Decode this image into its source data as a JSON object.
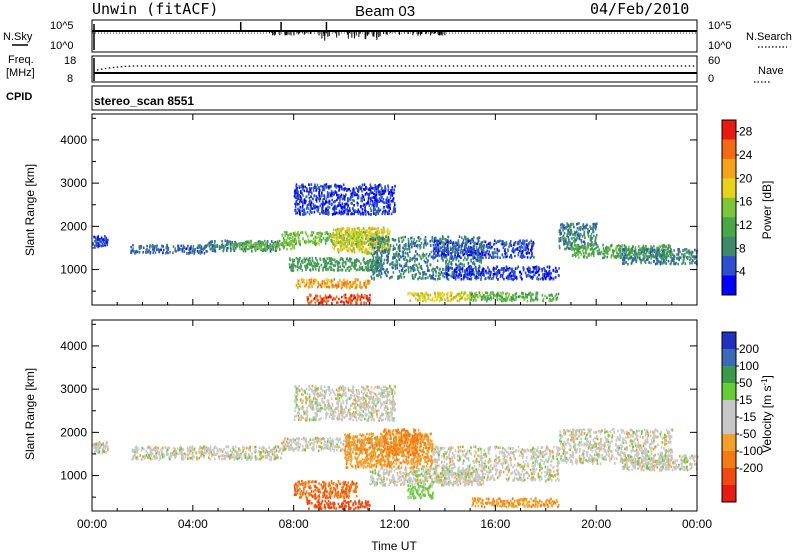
{
  "header": {
    "station": "Unwin (fitACF)",
    "beam": "Beam 03",
    "date": "04/Feb/2010"
  },
  "side_labels": {
    "nsky": "N.Sky",
    "nsky_hi": "10^5",
    "nsky_lo": "10^0",
    "nsearch": "N.Search",
    "nsearch_hi": "10^5",
    "nsearch_lo": "10^0",
    "freq": "Freq.",
    "freq_unit": "[MHz]",
    "freq_hi": "18",
    "freq_lo": "8",
    "nave": "Nave",
    "nave_hi": "60",
    "nave_lo": "0",
    "cpid": "CPID",
    "cpid_value": "stereo_scan 8551"
  },
  "colors": {
    "power_scale": [
      "#0000ff",
      "#2b4fd0",
      "#3c8a6a",
      "#48a848",
      "#7cc63a",
      "#e8d21a",
      "#f4a21c",
      "#f46a14",
      "#e81a12"
    ],
    "velocity_scale": [
      "#e81a12",
      "#f04a10",
      "#f47a14",
      "#f4a028",
      "#c8c8c8",
      "#c8c8c8",
      "#66cc33",
      "#3a9a4a",
      "#3a6ab8",
      "#2030c0"
    ]
  },
  "chart_data": [
    {
      "type": "heatmap",
      "title": "",
      "xlabel": "",
      "ylabel": "Slant Range [km]",
      "xticks": [
        "00:00",
        "04:00",
        "08:00",
        "12:00",
        "16:00",
        "20:00",
        "00:00"
      ],
      "yticks": [
        "1000",
        "2000",
        "3000",
        "4000"
      ],
      "xlim_hours": [
        0,
        24
      ],
      "ylim_km": [
        180,
        4600
      ],
      "colorbar": {
        "label": "Power [dB]",
        "ticks": [
          "4",
          "8",
          "12",
          "16",
          "20",
          "24",
          "28"
        ],
        "range": [
          0,
          30
        ]
      },
      "echo_bands": [
        {
          "t0": 0.0,
          "t1": 0.6,
          "r0": 1550,
          "r1": 1800,
          "db": 4
        },
        {
          "t0": 1.5,
          "t1": 4.5,
          "r0": 1400,
          "r1": 1600,
          "db": 6
        },
        {
          "t0": 4.5,
          "t1": 7.5,
          "r0": 1450,
          "r1": 1700,
          "db": 8
        },
        {
          "t0": 5.5,
          "t1": 8.0,
          "r0": 1500,
          "r1": 1650,
          "db": 14
        },
        {
          "t0": 7.5,
          "t1": 11.5,
          "r0": 1600,
          "r1": 1900,
          "db": 14
        },
        {
          "t0": 9.5,
          "t1": 11.8,
          "r0": 1400,
          "r1": 2000,
          "db": 18
        },
        {
          "t0": 8.0,
          "t1": 11.0,
          "r0": 600,
          "r1": 800,
          "db": 22
        },
        {
          "t0": 8.5,
          "t1": 11.0,
          "r0": 250,
          "r1": 450,
          "db": 26
        },
        {
          "t0": 7.8,
          "t1": 11.5,
          "r0": 1000,
          "r1": 1300,
          "db": 10
        },
        {
          "t0": 11.0,
          "t1": 15.5,
          "r0": 800,
          "r1": 1800,
          "db": 8
        },
        {
          "t0": 12.5,
          "t1": 15.5,
          "r0": 300,
          "r1": 500,
          "db": 18
        },
        {
          "t0": 13.5,
          "t1": 17.5,
          "r0": 1300,
          "r1": 1700,
          "db": 5
        },
        {
          "t0": 14.0,
          "t1": 18.5,
          "r0": 800,
          "r1": 1100,
          "db": 4
        },
        {
          "t0": 15.0,
          "t1": 18.5,
          "r0": 300,
          "r1": 500,
          "db": 12
        },
        {
          "t0": 18.5,
          "t1": 20.0,
          "r0": 1500,
          "r1": 2100,
          "db": 8
        },
        {
          "t0": 19.0,
          "t1": 23.0,
          "r0": 1300,
          "r1": 1600,
          "db": 12
        },
        {
          "t0": 21.0,
          "t1": 24.0,
          "r0": 1150,
          "r1": 1500,
          "db": 8
        },
        {
          "t0": 8.0,
          "t1": 12.0,
          "r0": 2300,
          "r1": 3000,
          "db": 4
        }
      ]
    },
    {
      "type": "heatmap",
      "title": "",
      "xlabel": "Time UT",
      "ylabel": "Slant Range [km]",
      "xticks": [
        "00:00",
        "04:00",
        "08:00",
        "12:00",
        "16:00",
        "20:00",
        "00:00"
      ],
      "yticks": [
        "1000",
        "2000",
        "3000",
        "4000"
      ],
      "xlim_hours": [
        0,
        24
      ],
      "ylim_km": [
        180,
        4600
      ],
      "colorbar": {
        "label": "Velocity [m s^-1]",
        "ticks": [
          "-200",
          "-100",
          "-50",
          "-15",
          "15",
          "50",
          "100",
          "200"
        ],
        "range": [
          -250,
          250
        ]
      },
      "echo_bands": [
        {
          "t0": 0.0,
          "t1": 0.6,
          "r0": 1550,
          "r1": 1800,
          "v": 0
        },
        {
          "t0": 1.5,
          "t1": 7.5,
          "r0": 1400,
          "r1": 1700,
          "v": 0
        },
        {
          "t0": 7.5,
          "t1": 11.5,
          "r0": 1600,
          "r1": 1900,
          "v": 0
        },
        {
          "t0": 10.0,
          "t1": 13.5,
          "r0": 1200,
          "r1": 2000,
          "v": -40
        },
        {
          "t0": 11.5,
          "t1": 13.0,
          "r0": 1500,
          "r1": 2100,
          "v": -60
        },
        {
          "t0": 8.0,
          "t1": 10.5,
          "r0": 500,
          "r1": 900,
          "v": -90
        },
        {
          "t0": 8.5,
          "t1": 11.0,
          "r0": 250,
          "r1": 450,
          "v": -140
        },
        {
          "t0": 11.0,
          "t1": 15.5,
          "r0": 800,
          "r1": 1200,
          "v": 0
        },
        {
          "t0": 12.5,
          "t1": 13.5,
          "r0": 500,
          "r1": 800,
          "v": 30
        },
        {
          "t0": 13.5,
          "t1": 18.5,
          "r0": 900,
          "r1": 1700,
          "v": 0
        },
        {
          "t0": 15.0,
          "t1": 18.5,
          "r0": 300,
          "r1": 500,
          "v": -40
        },
        {
          "t0": 18.5,
          "t1": 23.0,
          "r0": 1300,
          "r1": 2100,
          "v": 0
        },
        {
          "t0": 21.0,
          "t1": 24.0,
          "r0": 1150,
          "r1": 1500,
          "v": 0
        },
        {
          "t0": 8.0,
          "t1": 12.0,
          "r0": 2300,
          "r1": 3100,
          "v": 0
        }
      ]
    }
  ]
}
